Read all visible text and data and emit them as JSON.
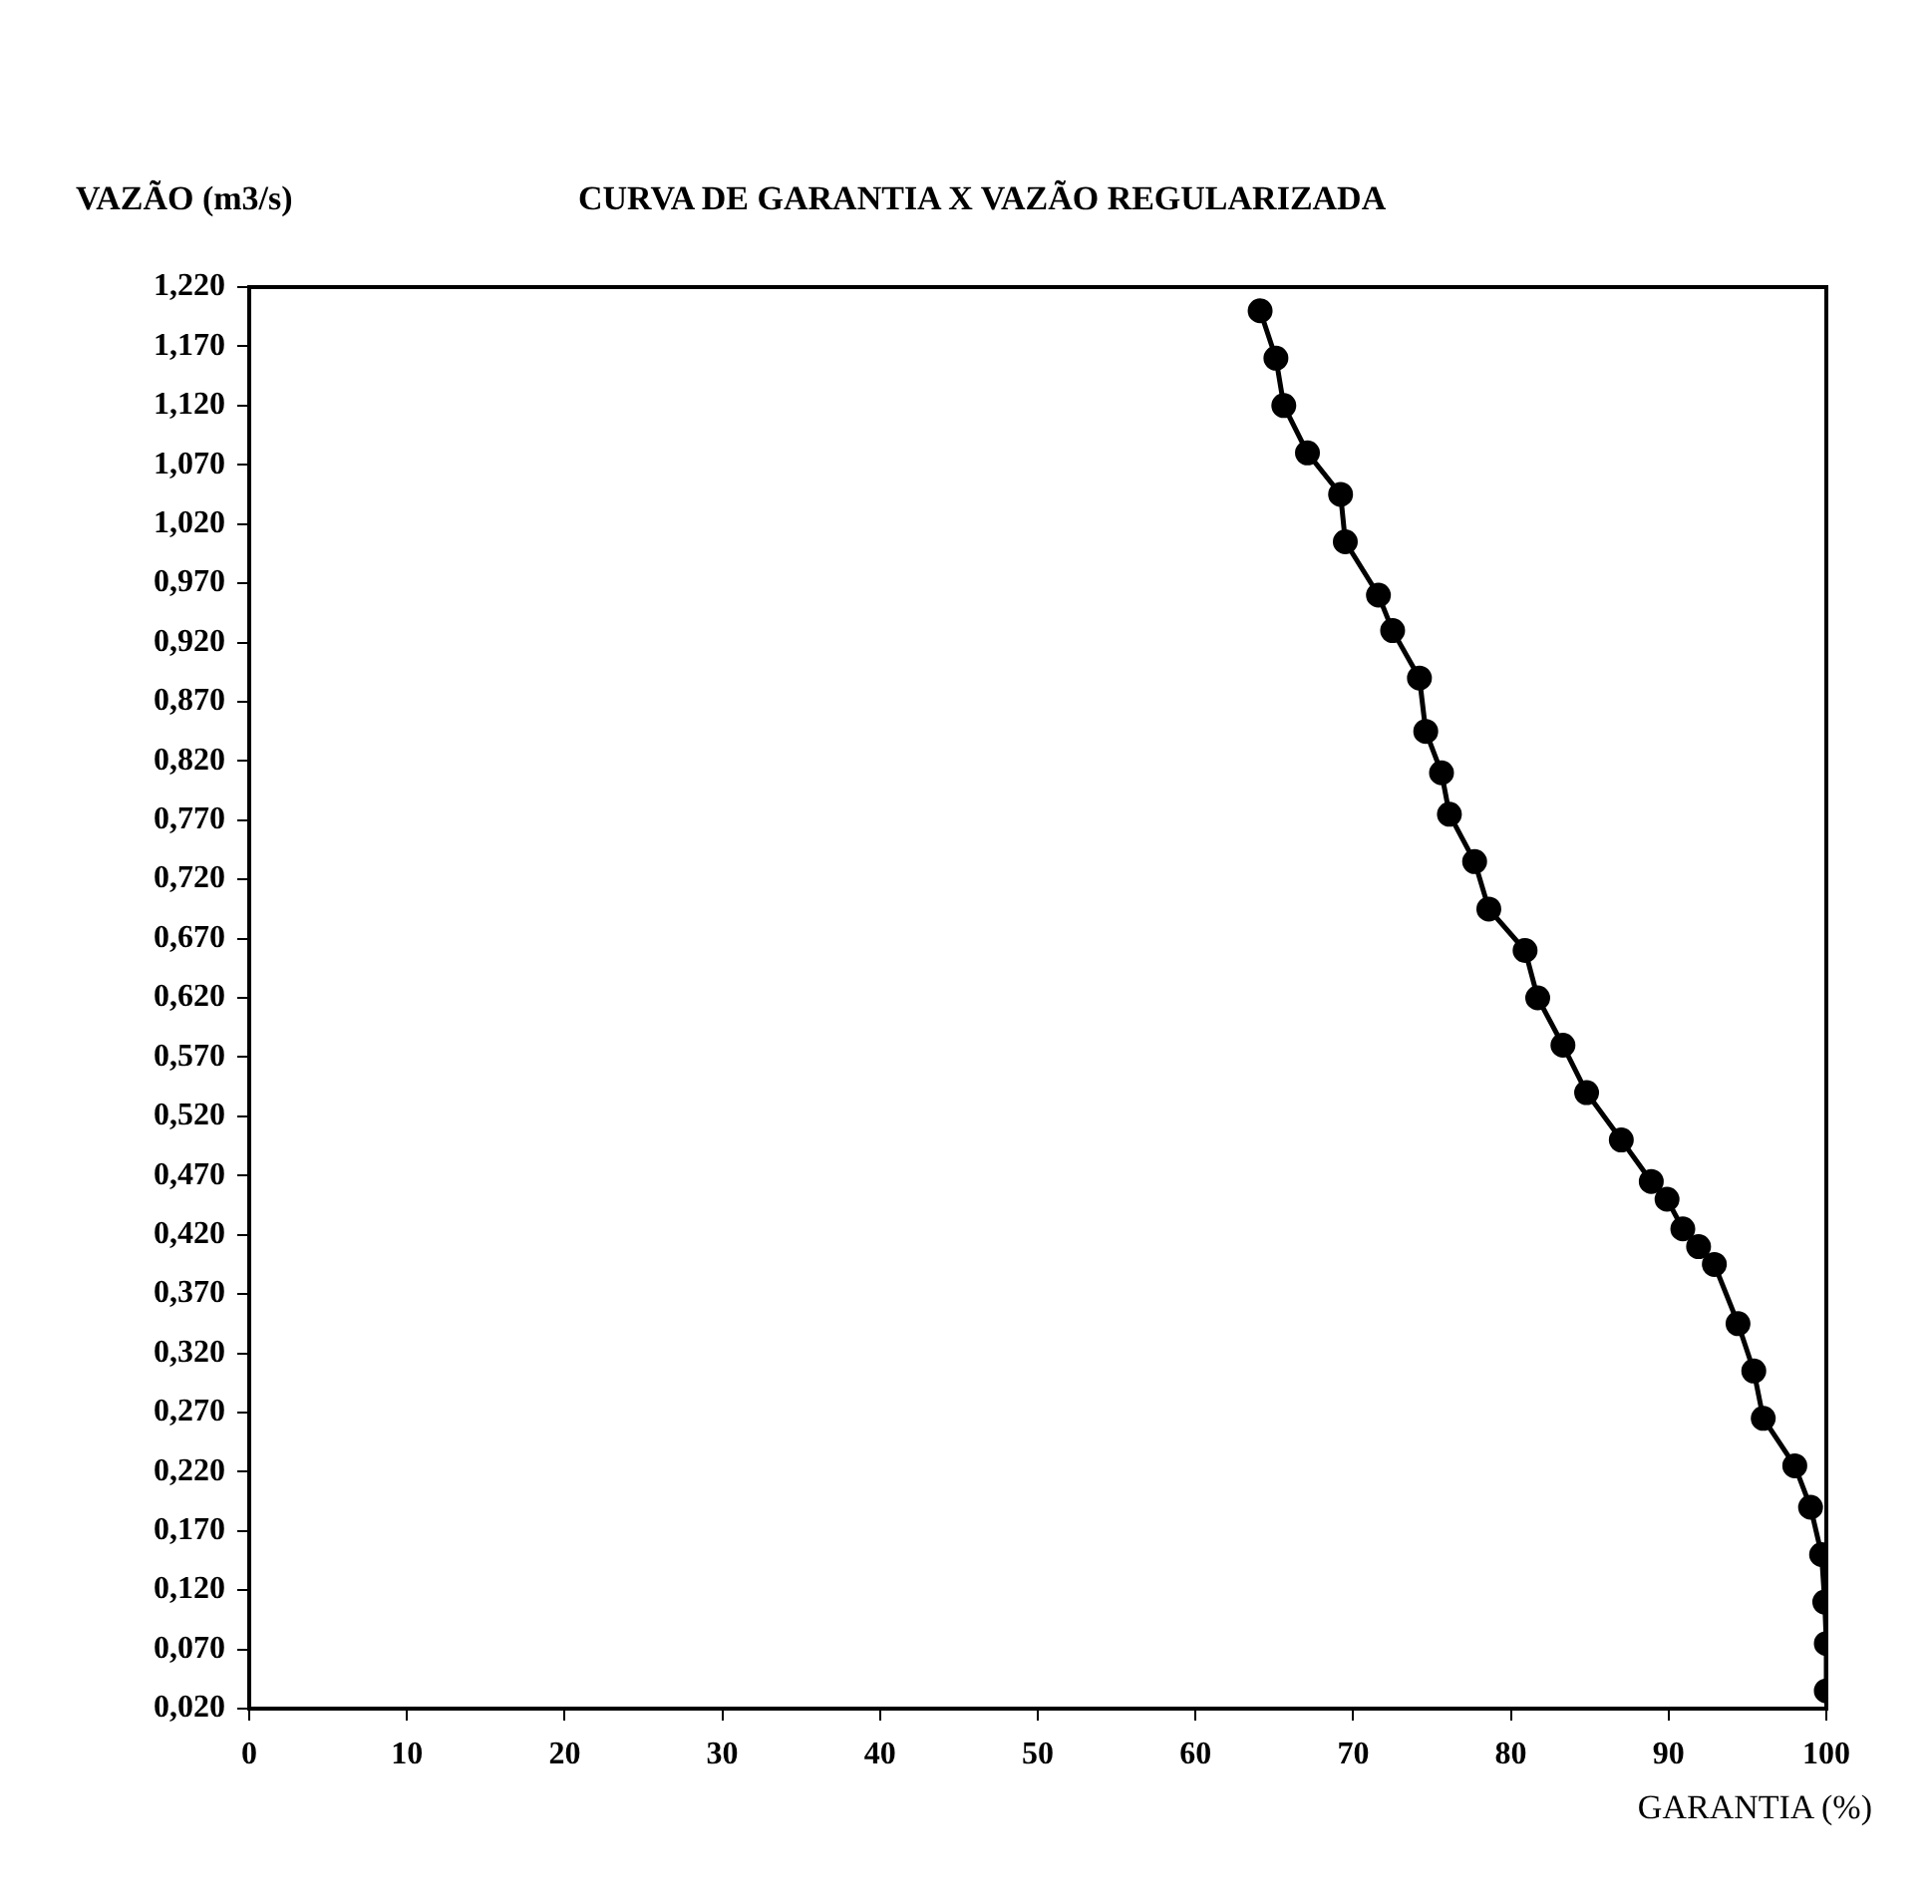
{
  "chart_data": {
    "type": "line",
    "title": "CURVA DE GARANTIA X VAZÃO REGULARIZADA",
    "ylabel": "VAZÃO (m3/s)",
    "xlabel": "GARANTIA (%)",
    "marker": "circle",
    "line_style": "solid",
    "series": [
      {
        "color": "#000000",
        "x": [
          64.1,
          65.1,
          65.6,
          67.1,
          69.2,
          69.5,
          71.6,
          72.5,
          74.2,
          74.6,
          75.6,
          76.1,
          77.7,
          78.6,
          80.9,
          81.7,
          83.3,
          84.8,
          87.0,
          88.9,
          89.9,
          90.9,
          91.9,
          92.9,
          94.4,
          95.4,
          96.0,
          98.0,
          99.0,
          99.7,
          99.9,
          100,
          100
        ],
        "values": [
          1.2,
          1.16,
          1.12,
          1.08,
          1.045,
          1.005,
          0.96,
          0.93,
          0.89,
          0.845,
          0.81,
          0.775,
          0.735,
          0.695,
          0.66,
          0.62,
          0.58,
          0.54,
          0.5,
          0.465,
          0.45,
          0.425,
          0.41,
          0.395,
          0.345,
          0.305,
          0.265,
          0.225,
          0.19,
          0.15,
          0.11,
          0.075,
          0.035
        ]
      }
    ],
    "xlim": [
      0,
      100
    ],
    "xticks": [
      0,
      10,
      20,
      30,
      40,
      50,
      60,
      70,
      80,
      90,
      100
    ],
    "ylim": [
      0.02,
      1.22
    ],
    "yticks": [
      {
        "value": 0.02,
        "label": "0,020"
      },
      {
        "value": 0.07,
        "label": "0,070"
      },
      {
        "value": 0.12,
        "label": "0,120"
      },
      {
        "value": 0.17,
        "label": "0,170"
      },
      {
        "value": 0.22,
        "label": "0,220"
      },
      {
        "value": 0.27,
        "label": "0,270"
      },
      {
        "value": 0.32,
        "label": "0,320"
      },
      {
        "value": 0.37,
        "label": "0,370"
      },
      {
        "value": 0.42,
        "label": "0,420"
      },
      {
        "value": 0.47,
        "label": "0,470"
      },
      {
        "value": 0.52,
        "label": "0,520"
      },
      {
        "value": 0.57,
        "label": "0,570"
      },
      {
        "value": 0.62,
        "label": "0,620"
      },
      {
        "value": 0.67,
        "label": "0,670"
      },
      {
        "value": 0.72,
        "label": "0,720"
      },
      {
        "value": 0.77,
        "label": "0,770"
      },
      {
        "value": 0.82,
        "label": "0,820"
      },
      {
        "value": 0.87,
        "label": "0,870"
      },
      {
        "value": 0.92,
        "label": "0,920"
      },
      {
        "value": 0.97,
        "label": "0,970"
      },
      {
        "value": 1.02,
        "label": "1,020"
      },
      {
        "value": 1.07,
        "label": "1,070"
      },
      {
        "value": 1.12,
        "label": "1,120"
      },
      {
        "value": 1.17,
        "label": "1,170"
      },
      {
        "value": 1.22,
        "label": "1,220"
      }
    ],
    "grid": false,
    "legend": false
  }
}
